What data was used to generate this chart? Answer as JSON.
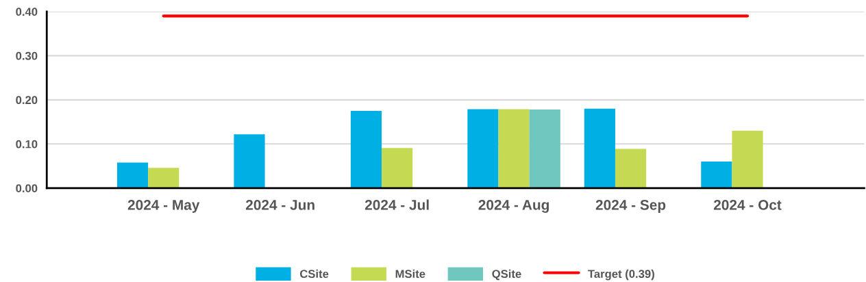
{
  "chart_data": {
    "type": "bar",
    "categories": [
      "2024 - May",
      "2024 - Jun",
      "2024 - Jul",
      "2024 - Aug",
      "2024 - Sep",
      "2024 - Oct"
    ],
    "series": [
      {
        "name": "CSite",
        "color": "#00b0e4",
        "values": [
          0.058,
          0.122,
          0.175,
          0.179,
          0.18,
          0.06
        ]
      },
      {
        "name": "MSite",
        "color": "#c6d953",
        "values": [
          0.046,
          null,
          0.091,
          0.179,
          0.089,
          0.13
        ]
      },
      {
        "name": "QSite",
        "color": "#6fc7bf",
        "values": [
          null,
          null,
          null,
          0.178,
          null,
          null
        ]
      },
      {
        "name": "Target (0.39)",
        "type": "line",
        "color": "#ff0000",
        "values": [
          0.39,
          0.39,
          0.39,
          0.39,
          0.39,
          0.39
        ]
      }
    ],
    "ylim": [
      0,
      0.4
    ],
    "yticks": [
      {
        "value": 0,
        "label": "0.00"
      },
      {
        "value": 0.1,
        "label": "0.10"
      },
      {
        "value": 0.2,
        "label": "0.20"
      },
      {
        "value": 0.3,
        "label": "0.30"
      },
      {
        "value": 0.4,
        "label": "0.40"
      }
    ],
    "grid": "y",
    "legend": "bottom",
    "marker": "none",
    "line_style": "solid"
  }
}
